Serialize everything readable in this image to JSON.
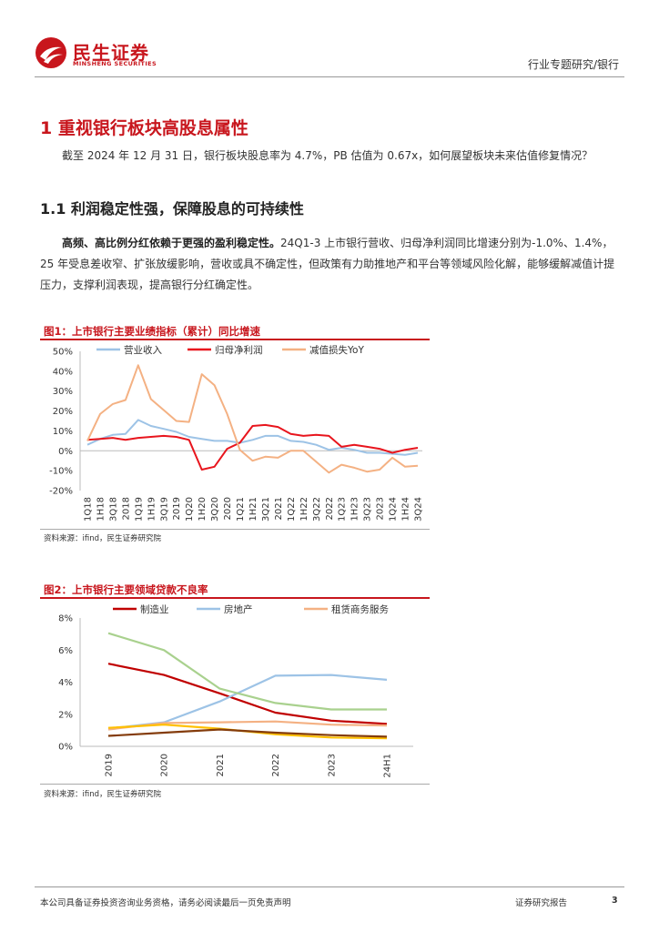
{
  "header": {
    "logo_cn": "民生证券",
    "logo_en": "MINSHENG SECURITIES",
    "category": "行业专题研究/银行"
  },
  "section1": {
    "title": "1 重视银行板块高股息属性",
    "intro": "截至 2024 年 12 月 31 日，银行板块股息率为 4.7%，PB 估值为 0.67x，如何展望板块未来估值修复情况？"
  },
  "section1_1": {
    "title": "1.1 利润稳定性强，保障股息的可持续性",
    "bold_lead": "高频、高比例分红依赖于更强的盈利稳定性。",
    "body": "24Q1-3 上市银行营收、归母净利润同比增速分别为-1.0%、1.4%，25 年受息差收窄、扩张放缓影响，营收或具不确定性，但政策有力助推地产和平台等领域风险化解，能够缓解减值计提压力，支撑利润表现，提高银行分红确定性。"
  },
  "figure1": {
    "title": "图1：上市银行主要业绩指标（累计）同比增速",
    "source": "资料来源：ifind，民生证券研究院"
  },
  "figure2": {
    "title": "图2：上市银行主要领域贷款不良率",
    "source": "资料来源：ifind，民生证券研究院"
  },
  "footer": {
    "disclaimer": "本公司具备证券投资咨询业务资格，请务必阅读最后一页免责声明",
    "report_type": "证券研究报告",
    "page": "3"
  },
  "chart_data": [
    {
      "type": "line",
      "title": "图1：上市银行主要业绩指标（累计）同比增速",
      "categories": [
        "1Q18",
        "1H18",
        "3Q18",
        "2018",
        "1Q19",
        "1H19",
        "3Q19",
        "2019",
        "1Q20",
        "1H20",
        "3Q20",
        "2020",
        "1Q21",
        "1H21",
        "3Q21",
        "2021",
        "1Q22",
        "1H22",
        "3Q22",
        "2022",
        "1Q23",
        "1H23",
        "3Q23",
        "2023",
        "1Q24",
        "1H24",
        "3Q24"
      ],
      "tick_labels": [
        "1Q18",
        "1H18",
        "3Q18",
        "2018",
        "1Q19",
        "1H19",
        "3Q19",
        "2019",
        "1Q20",
        "1H20",
        "3Q20",
        "2020",
        "1Q21",
        "1H21",
        "3Q21",
        "2021",
        "1Q22",
        "1H22",
        "3Q22",
        "2022",
        "1Q23",
        "1H23",
        "3Q23",
        "2023",
        "1Q24",
        "1H24",
        "3Q24"
      ],
      "yticks": [
        "50%",
        "40%",
        "30%",
        "20%",
        "10%",
        "0%",
        "-10%",
        "-20%"
      ],
      "ylim": [
        -20,
        50
      ],
      "grid": false,
      "legend_position": "top",
      "series": [
        {
          "name": "营业收入",
          "color": "#9dc3e6",
          "values": [
            3.0,
            6.0,
            8.0,
            8.5,
            15.5,
            12.5,
            11.0,
            9.5,
            7.0,
            6.0,
            5.0,
            5.0,
            4.0,
            5.5,
            7.5,
            7.5,
            5.0,
            4.5,
            3.0,
            0.5,
            1.5,
            0.5,
            -1.0,
            -1.0,
            -1.5,
            -2.0,
            -1.0
          ]
        },
        {
          "name": "归母净利润",
          "color": "#e8151d",
          "values": [
            5.5,
            6.0,
            6.5,
            5.5,
            6.5,
            7.0,
            7.5,
            7.0,
            5.5,
            -9.5,
            -8.0,
            1.0,
            4.0,
            12.5,
            13.0,
            12.0,
            8.5,
            7.5,
            8.0,
            7.5,
            2.0,
            3.0,
            2.0,
            1.0,
            -1.0,
            0.5,
            1.5
          ]
        },
        {
          "name": "减值损失YoY",
          "color": "#f4b183",
          "values": [
            5.0,
            18.5,
            23.5,
            25.5,
            43.0,
            26.0,
            20.5,
            15.0,
            14.5,
            38.5,
            33.0,
            18.5,
            0.5,
            -5.0,
            -3.0,
            -3.5,
            0.0,
            0.0,
            -5.5,
            -11.0,
            -7.0,
            -8.5,
            -10.5,
            -9.5,
            -3.5,
            -8.0,
            -7.5
          ]
        }
      ]
    },
    {
      "type": "line",
      "title": "图2：上市银行主要领域贷款不良率",
      "categories": [
        "2019",
        "2020",
        "2021",
        "2022",
        "2023",
        "24H1"
      ],
      "yticks": [
        "8%",
        "6%",
        "4%",
        "2%",
        "0%"
      ],
      "ylim": [
        0,
        8
      ],
      "grid": false,
      "legend_position": "top",
      "series": [
        {
          "name": "制造业",
          "color": "#c00000",
          "values": [
            5.15,
            4.45,
            3.3,
            2.1,
            1.6,
            1.4
          ]
        },
        {
          "name": "房地产",
          "color": "#9dc3e6",
          "values": [
            1.1,
            1.5,
            2.8,
            4.4,
            4.45,
            4.15
          ]
        },
        {
          "name": "租赁商务服务",
          "color": "#f4b183",
          "values": [
            1.05,
            1.45,
            1.5,
            1.55,
            1.35,
            1.3
          ]
        },
        {
          "name": "",
          "color": "#a9d18e",
          "values": [
            7.05,
            6.0,
            3.6,
            2.7,
            2.3,
            2.3
          ]
        },
        {
          "name": "",
          "color": "#ffc000",
          "values": [
            1.15,
            1.35,
            1.1,
            0.75,
            0.55,
            0.5
          ]
        },
        {
          "name": "",
          "color": "#843c0c",
          "values": [
            0.65,
            0.85,
            1.05,
            0.85,
            0.7,
            0.6
          ]
        }
      ]
    }
  ]
}
